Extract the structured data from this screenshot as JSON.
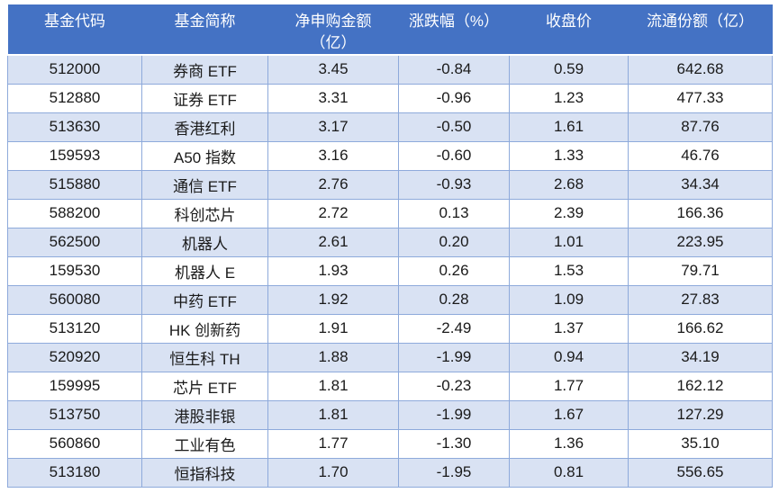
{
  "table": {
    "column_keys": [
      "fund-code",
      "fund-name",
      "net-subscription-amount",
      "change-percent",
      "close-price",
      "outstanding-shares"
    ],
    "columns": [
      {
        "label": "基金代码"
      },
      {
        "label": "基金简称"
      },
      {
        "label": "净申购金额",
        "label2": "（亿）"
      },
      {
        "label": "涨跌幅（%）"
      },
      {
        "label": "收盘价"
      },
      {
        "label": "流通份额（亿）"
      }
    ],
    "rows": [
      [
        "512000",
        "券商 ETF",
        "3.45",
        "-0.84",
        "0.59",
        "642.68"
      ],
      [
        "512880",
        "证券 ETF",
        "3.31",
        "-0.96",
        "1.23",
        "477.33"
      ],
      [
        "513630",
        "香港红利",
        "3.17",
        "-0.50",
        "1.61",
        "87.76"
      ],
      [
        "159593",
        "A50 指数",
        "3.16",
        "-0.60",
        "1.33",
        "46.76"
      ],
      [
        "515880",
        "通信 ETF",
        "2.76",
        "-0.93",
        "2.68",
        "34.34"
      ],
      [
        "588200",
        "科创芯片",
        "2.72",
        "0.13",
        "2.39",
        "166.36"
      ],
      [
        "562500",
        "机器人",
        "2.61",
        "0.20",
        "1.01",
        "223.95"
      ],
      [
        "159530",
        "机器人 E",
        "1.93",
        "0.26",
        "1.53",
        "79.71"
      ],
      [
        "560080",
        "中药 ETF",
        "1.92",
        "0.28",
        "1.09",
        "27.83"
      ],
      [
        "513120",
        "HK 创新药",
        "1.91",
        "-2.49",
        "1.37",
        "166.62"
      ],
      [
        "520920",
        "恒生科 TH",
        "1.88",
        "-1.99",
        "0.94",
        "34.19"
      ],
      [
        "159995",
        "芯片 ETF",
        "1.81",
        "-0.23",
        "1.77",
        "162.12"
      ],
      [
        "513750",
        "港股非银",
        "1.81",
        "-1.99",
        "1.67",
        "127.29"
      ],
      [
        "560860",
        "工业有色",
        "1.77",
        "-1.30",
        "1.36",
        "35.10"
      ],
      [
        "513180",
        "恒指科技",
        "1.70",
        "-1.95",
        "0.81",
        "556.65"
      ]
    ]
  },
  "colors": {
    "header_bg": "#4472C4",
    "header_text": "#FFFFFF",
    "row_bg": "#FFFFFF",
    "row_alt_bg": "#D9E2F3",
    "border": "#8EAADB",
    "text": "#1A1A1A"
  }
}
